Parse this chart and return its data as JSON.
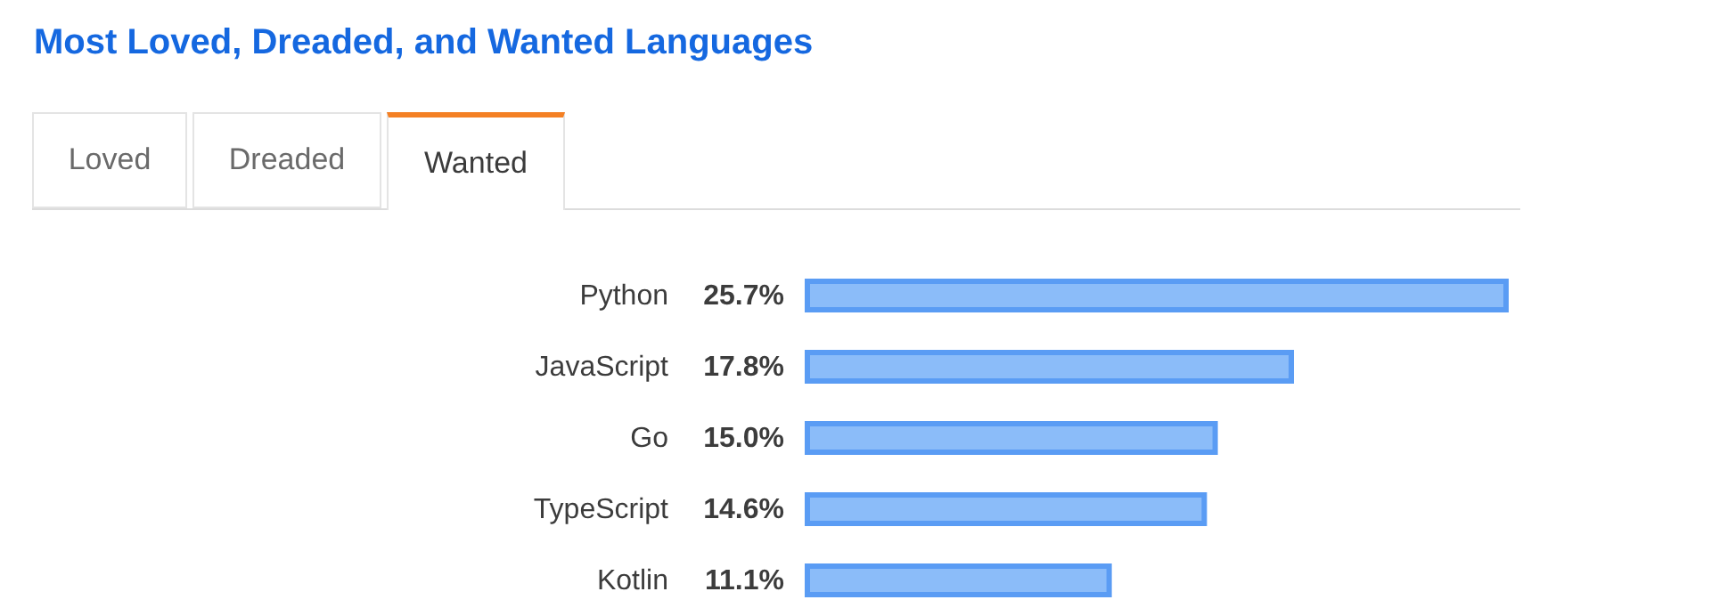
{
  "chart_data": {
    "type": "bar",
    "orientation": "horizontal",
    "title": "Most Loved, Dreaded, and Wanted Languages",
    "annotations": [
      "Loved",
      "Dreaded",
      "Wanted"
    ],
    "categories": [
      "Python",
      "JavaScript",
      "Go",
      "TypeScript",
      "Kotlin"
    ],
    "values": [
      25.7,
      17.8,
      15.0,
      14.6,
      11.1
    ],
    "value_labels": [
      "25.7%",
      "17.8%",
      "15.0%",
      "14.6%",
      "11.1%"
    ],
    "color": "#8bbcf9",
    "tick_labels": "y"
  }
}
